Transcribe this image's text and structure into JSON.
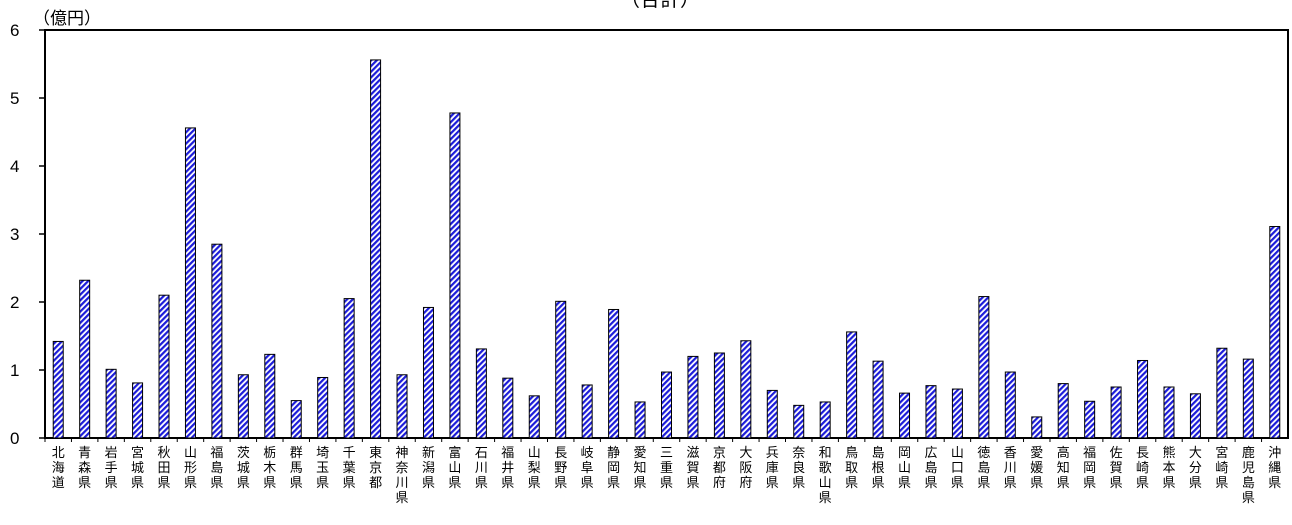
{
  "chart_data": {
    "type": "bar",
    "title": "（合計）",
    "ylabel": "（億円）",
    "xlabel": "",
    "ylim": [
      0,
      6
    ],
    "yticks": [
      0,
      1,
      2,
      3,
      4,
      5,
      6
    ],
    "grid": false,
    "bar_fill": "diagonal blue/white hatch",
    "colors": {
      "bar_stripe": "#1b1bd9",
      "bar_border": "#000000",
      "axis": "#000000"
    },
    "categories": [
      "北海道",
      "青森県",
      "岩手県",
      "宮城県",
      "秋田県",
      "山形県",
      "福島県",
      "茨城県",
      "栃木県",
      "群馬県",
      "埼玉県",
      "千葉県",
      "東京都",
      "神奈川県",
      "新潟県",
      "富山県",
      "石川県",
      "福井県",
      "山梨県",
      "長野県",
      "岐阜県",
      "静岡県",
      "愛知県",
      "三重県",
      "滋賀県",
      "京都府",
      "大阪府",
      "兵庫県",
      "奈良県",
      "和歌山県",
      "鳥取県",
      "島根県",
      "岡山県",
      "広島県",
      "山口県",
      "徳島県",
      "香川県",
      "愛媛県",
      "高知県",
      "福岡県",
      "佐賀県",
      "長崎県",
      "熊本県",
      "大分県",
      "宮崎県",
      "鹿児島県",
      "沖縄県"
    ],
    "values": [
      1.42,
      2.32,
      1.01,
      0.81,
      2.1,
      4.56,
      2.85,
      0.93,
      1.23,
      0.55,
      0.89,
      2.05,
      5.56,
      0.93,
      1.92,
      4.78,
      1.31,
      0.88,
      0.62,
      2.01,
      0.78,
      1.89,
      0.53,
      0.97,
      1.2,
      1.25,
      1.43,
      0.7,
      0.48,
      0.53,
      1.56,
      1.13,
      0.66,
      0.77,
      0.72,
      2.08,
      0.97,
      0.31,
      0.8,
      0.54,
      0.75,
      1.14,
      0.75,
      0.65,
      1.32,
      1.16,
      3.11
    ]
  }
}
